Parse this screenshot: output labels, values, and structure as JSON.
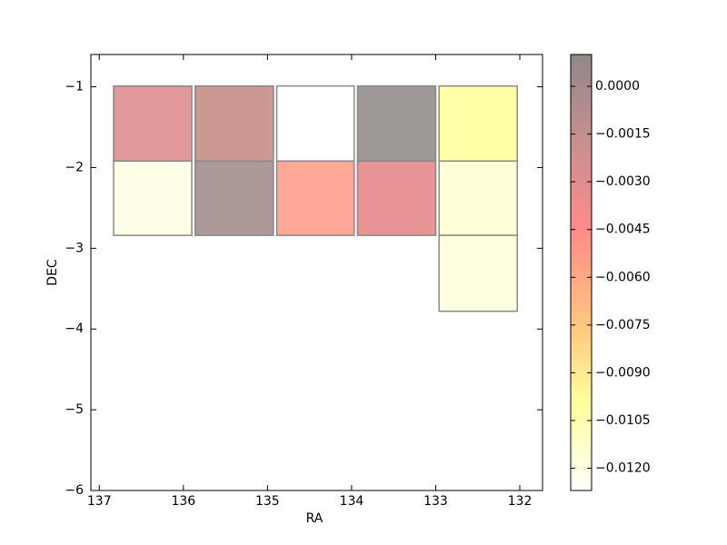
{
  "chart_data": {
    "type": "heatmap",
    "xlabel": "RA",
    "ylabel": "DEC",
    "xlim": [
      137.1,
      131.73
    ],
    "xticks": [
      137,
      136,
      135,
      134,
      133,
      132
    ],
    "ylim": [
      -6,
      -0.6
    ],
    "yticks": [
      {
        "value": -1,
        "label": "−1"
      },
      {
        "value": -2,
        "label": "−2"
      },
      {
        "value": -3,
        "label": "−3"
      },
      {
        "value": -4,
        "label": "−4"
      },
      {
        "value": -5,
        "label": "−5"
      },
      {
        "value": -6,
        "label": "−6"
      }
    ],
    "cells": [
      {
        "ra": [
          136.83,
          135.9
        ],
        "dec": [
          -1.92,
          -0.99
        ],
        "value": -0.003,
        "color": "#e09898"
      },
      {
        "ra": [
          135.86,
          134.93
        ],
        "dec": [
          -1.92,
          -0.99
        ],
        "value": -0.0015,
        "color": "#cc9892"
      },
      {
        "ra": [
          134.89,
          133.97
        ],
        "dec": [
          -1.92,
          -0.99
        ],
        "value": -0.0125,
        "color": "#ffffff"
      },
      {
        "ra": [
          133.93,
          133.0
        ],
        "dec": [
          -1.92,
          -0.99
        ],
        "value": 0.0005,
        "color": "#9e9896"
      },
      {
        "ra": [
          132.96,
          132.03
        ],
        "dec": [
          -1.92,
          -0.99
        ],
        "value": -0.0095,
        "color": "#ffffa8"
      },
      {
        "ra": [
          136.83,
          135.9
        ],
        "dec": [
          -2.84,
          -1.92
        ],
        "value": -0.0118,
        "color": "#ffffe8"
      },
      {
        "ra": [
          135.86,
          134.93
        ],
        "dec": [
          -2.84,
          -1.92
        ],
        "value": 0.0,
        "color": "#ac9896"
      },
      {
        "ra": [
          134.89,
          133.97
        ],
        "dec": [
          -2.84,
          -1.92
        ],
        "value": -0.0045,
        "color": "#ffa898"
      },
      {
        "ra": [
          133.93,
          133.0
        ],
        "dec": [
          -2.84,
          -1.92
        ],
        "value": -0.0033,
        "color": "#e89494"
      },
      {
        "ra": [
          132.96,
          132.03
        ],
        "dec": [
          -2.84,
          -1.92
        ],
        "value": -0.0112,
        "color": "#ffffd8"
      },
      {
        "ra": [
          132.96,
          132.03
        ],
        "dec": [
          -3.78,
          -2.84
        ],
        "value": -0.0115,
        "color": "#ffffe0"
      }
    ],
    "clim": [
      -0.0127,
      0.001
    ],
    "colormap": [
      "#ffffff",
      "#ffff9c",
      "#ffc080",
      "#ff8a8a",
      "#c89090",
      "#908888"
    ],
    "cticks": [
      {
        "value": 0,
        "label": "0.0000"
      },
      {
        "value": -0.0015,
        "label": "−0.0015"
      },
      {
        "value": -0.003,
        "label": "−0.0030"
      },
      {
        "value": -0.0045,
        "label": "−0.0045"
      },
      {
        "value": -0.006,
        "label": "−0.0060"
      },
      {
        "value": -0.0075,
        "label": "−0.0075"
      },
      {
        "value": -0.009,
        "label": "−0.0090"
      },
      {
        "value": -0.0105,
        "label": "−0.0105"
      },
      {
        "value": -0.012,
        "label": "−0.0120"
      }
    ]
  }
}
